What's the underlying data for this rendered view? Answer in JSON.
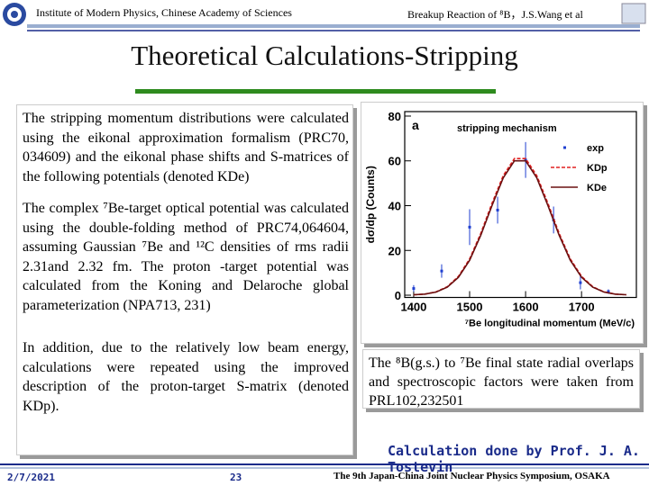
{
  "header": {
    "institute": "Institute of Modern Physics, Chinese Academy of Sciences",
    "talk": "Breakup Reaction of ⁸B，J.S.Wang  et al"
  },
  "title": "Theoretical Calculations-Stripping",
  "left_text": {
    "paragraphs": [
      "The stripping momentum distributions were calculated using the eikonal approximation formalism (PRC70, 034609) and the eikonal phase shifts and S-matrices of the following potentials (denoted KDe)",
      "The complex ⁷Be-target optical potential was calculated using the double-folding method of PRC74,064604, assuming Gaussian ⁷Be and ¹²C densities of rms radii 2.31and 2.32 fm. The proton -target potential was calculated from the Koning and Delaroche global parameterization (NPA713, 231)",
      "In addition, due to the relatively low beam energy, calculations were repeated using the improved description of the proton-target S-matrix (denoted KDp)."
    ]
  },
  "chart_data": {
    "type": "line",
    "panel_label": "a",
    "title": "stripping mechanism",
    "x_label": "⁷Be longitudinal momentum (MeV/c)",
    "y_label": "dσ/dp (Counts)",
    "xlim": [
      1384,
      1798
    ],
    "ylim": [
      -1,
      82
    ],
    "xticks": [
      1400,
      1500,
      1600,
      1700
    ],
    "yticks": [
      0,
      20,
      40,
      60,
      80
    ],
    "legend": "upper right",
    "series": [
      {
        "name": "exp",
        "color": "#1f3fd0",
        "style": "points",
        "x": [
          1400,
          1450,
          1500,
          1550,
          1600,
          1650,
          1698,
          1748
        ],
        "values": [
          3,
          10.8,
          30.4,
          38,
          60.4,
          33.6,
          5.6,
          1.6
        ],
        "errors": [
          1.5,
          3,
          8,
          6,
          8,
          6,
          3,
          1
        ]
      },
      {
        "name": "KDp",
        "color": "#e02020",
        "style": "dashed",
        "x": [
          1400,
          1420,
          1440,
          1460,
          1480,
          1500,
          1520,
          1540,
          1560,
          1580,
          1600,
          1620,
          1640,
          1660,
          1680,
          1700,
          1720,
          1740,
          1760,
          1780
        ],
        "values": [
          0.2,
          0.5,
          1.5,
          3.8,
          8.4,
          16.2,
          27.6,
          41,
          53.4,
          61,
          61,
          53.4,
          41,
          27.6,
          16.2,
          8.4,
          3.8,
          1.5,
          0.5,
          0.2
        ]
      },
      {
        "name": "KDe",
        "color": "#6a1010",
        "style": "solid",
        "x": [
          1400,
          1420,
          1440,
          1460,
          1480,
          1500,
          1520,
          1540,
          1560,
          1580,
          1600,
          1620,
          1640,
          1660,
          1680,
          1700,
          1720,
          1740,
          1760,
          1780
        ],
        "values": [
          0.2,
          0.5,
          1.4,
          3.6,
          8,
          15.6,
          26.8,
          40,
          52.4,
          60,
          60,
          52.4,
          40,
          26.8,
          15.6,
          8,
          3.6,
          1.4,
          0.5,
          0.2
        ]
      }
    ]
  },
  "right_text": "The ⁸B(g.s.) to ⁷Be final state radial overlaps and spectroscopic factors were taken from PRL102,232501",
  "credit": "Calculation done by Prof. J. A. Tostevin",
  "footer": {
    "date": "2/7/2021",
    "page": "23",
    "event": "The 9th Japan-China Joint Nuclear Physics Symposium, OSAKA"
  }
}
